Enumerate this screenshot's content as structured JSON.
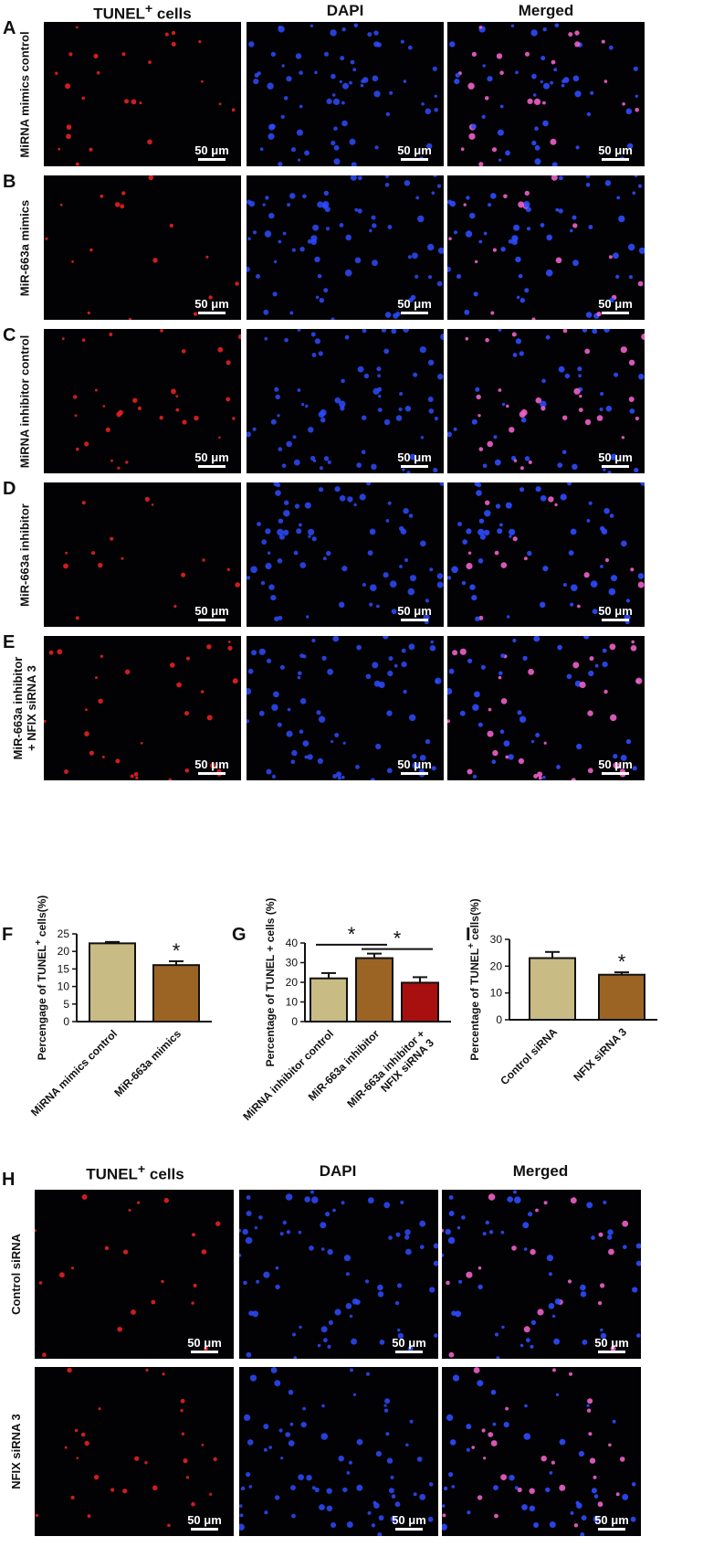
{
  "panel_letters": {
    "A": "A",
    "B": "B",
    "C": "C",
    "D": "D",
    "E": "E",
    "F": "F",
    "G": "G",
    "I": "I",
    "H": "H"
  },
  "column_headers": {
    "tunel": "TUNEL",
    "tunel_sup": "+",
    "tunel_suffix": " cells",
    "dapi": "DAPI",
    "merged": "Merged"
  },
  "rows_top": [
    {
      "letter": "A",
      "label_lines": [
        "MiRNA mimics control"
      ]
    },
    {
      "letter": "B",
      "label_lines": [
        "MiR-663a mimics"
      ]
    },
    {
      "letter": "C",
      "label_lines": [
        "MiRNA inhibitor control"
      ]
    },
    {
      "letter": "D",
      "label_lines": [
        "MiR-663a inhibitor"
      ]
    },
    {
      "letter": "E",
      "label_lines": [
        "MiR-663a inhibitor",
        "+ NFIX siRNA 3"
      ]
    }
  ],
  "rows_bottom": [
    {
      "label_lines": [
        "Control siRNA"
      ]
    },
    {
      "label_lines": [
        "NFIX siRNA 3"
      ]
    }
  ],
  "scale_bar": "50 μm",
  "colors": {
    "tan": "#C8BB83",
    "brown": "#9B6425",
    "red": "#A80F0F",
    "panel_bg": "#020205",
    "red_dot": "#E52020",
    "blue_dot": "#2E4BFF",
    "pink_dot": "#F060C8"
  },
  "chart_data": [
    {
      "id": "F",
      "type": "bar",
      "ylabel": "Percengage of TUNEL+ cells(%)",
      "ylabel_pre": "Percengage of TUNEL",
      "ylabel_sup": "+",
      "ylabel_post": " cells(%)",
      "categories": [
        "MiRNA mimics control",
        "MiR-663a mimics"
      ],
      "values": [
        22.3,
        16.1
      ],
      "errors": [
        0.4,
        1.1
      ],
      "colors": [
        "#C8BB83",
        "#9B6425"
      ],
      "ylim": [
        0,
        25
      ],
      "yticks": [
        0,
        5,
        10,
        15,
        20,
        25
      ],
      "annotations": [
        {
          "bar": 1,
          "text": "*"
        }
      ]
    },
    {
      "id": "G",
      "type": "bar",
      "ylabel": "Percentage of TUNEL + cells (%)",
      "categories": [
        "MiRNA inhibitor control",
        "MiR-663a inhibitor",
        "MiR-663a inhibitor +\nNFIX siRNA 3"
      ],
      "values": [
        22.0,
        32.3,
        19.8
      ],
      "errors": [
        2.7,
        2.3,
        2.8
      ],
      "colors": [
        "#C8BB83",
        "#9B6425",
        "#A80F0F"
      ],
      "ylim": [
        0,
        40
      ],
      "yticks": [
        0,
        10,
        20,
        30,
        40
      ],
      "brackets": [
        {
          "from": 0,
          "to": 1,
          "text": "*"
        },
        {
          "from": 1,
          "to": 2,
          "text": "*"
        }
      ]
    },
    {
      "id": "I",
      "type": "bar",
      "ylabel": "Percentage of TUNEL+ cells(%)",
      "ylabel_pre": "Percentage of TUNEL",
      "ylabel_sup": "+",
      "ylabel_post": " cells(%)",
      "categories": [
        "Control siRNA",
        "NFIX siRNA 3"
      ],
      "values": [
        23.0,
        16.8
      ],
      "errors": [
        2.3,
        0.9
      ],
      "colors": [
        "#C8BB83",
        "#9B6425"
      ],
      "ylim": [
        0,
        30
      ],
      "yticks": [
        0,
        10,
        20,
        30
      ],
      "annotations": [
        {
          "bar": 1,
          "text": "*"
        }
      ]
    }
  ]
}
